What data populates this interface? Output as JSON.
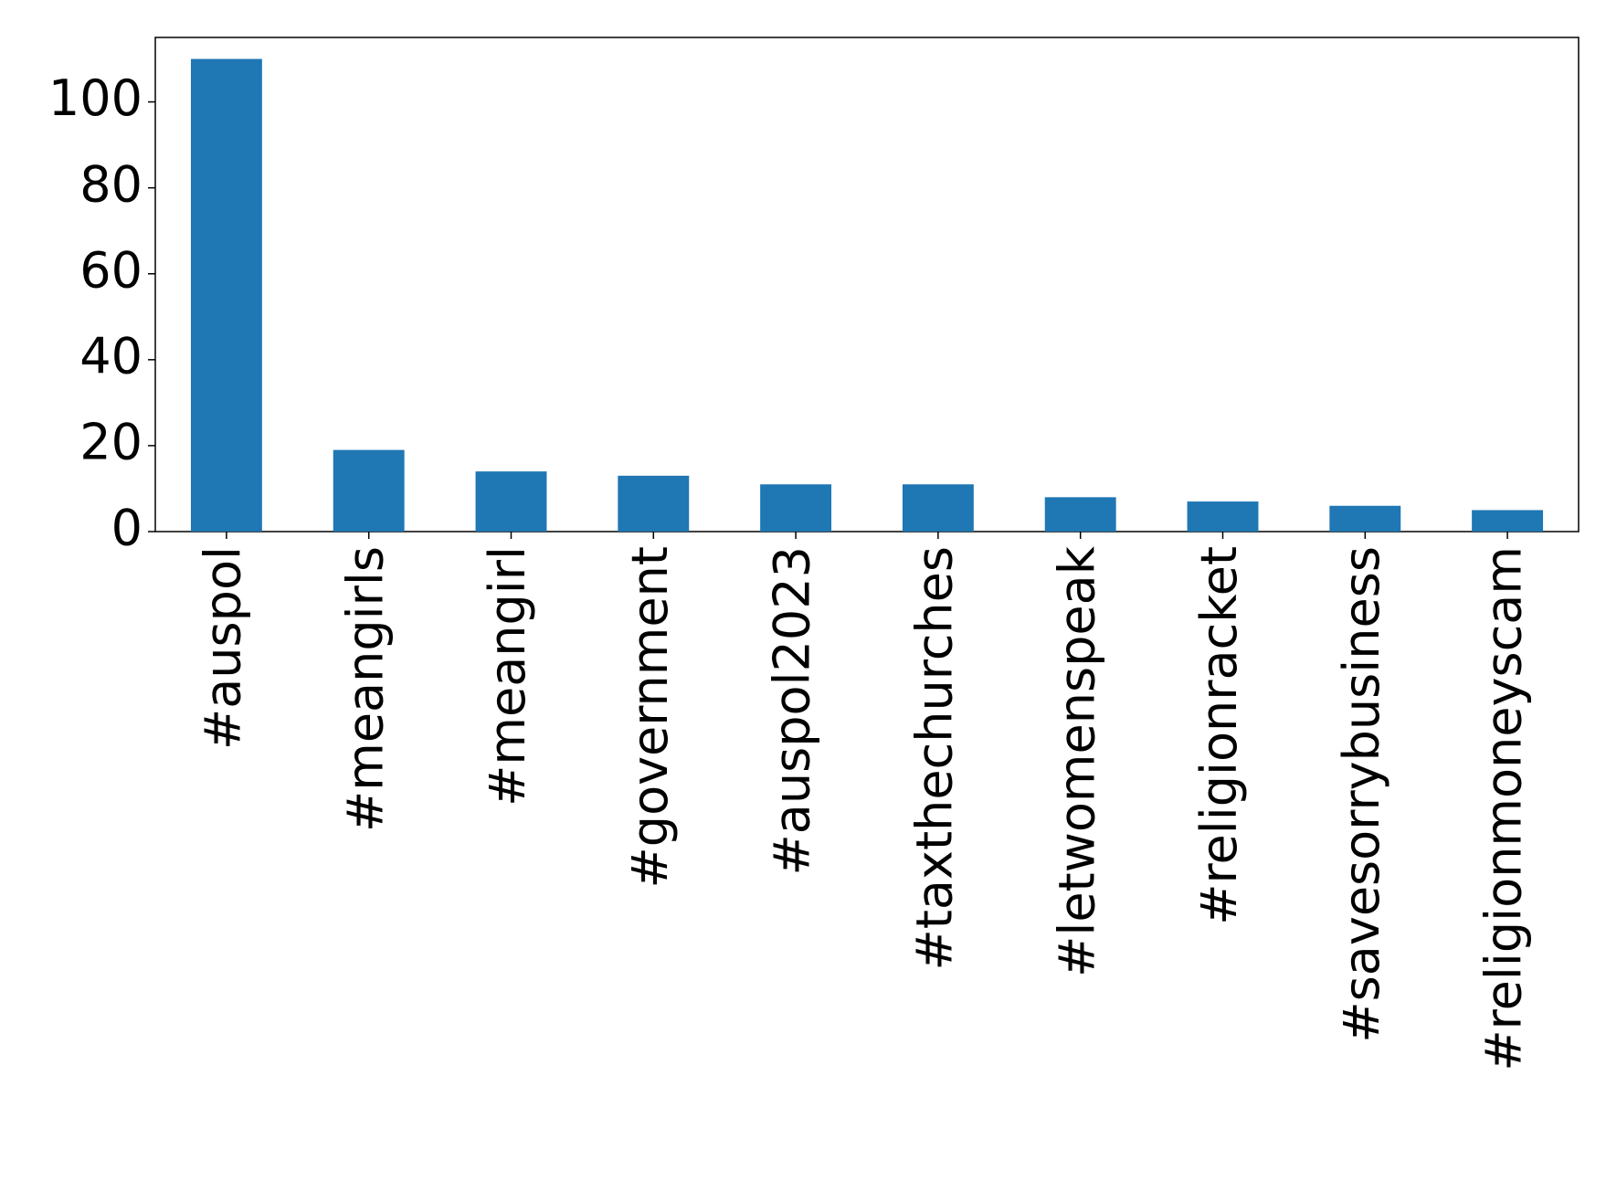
{
  "chart_data": {
    "type": "bar",
    "categories": [
      "#auspol",
      "#meangirls",
      "#meangirl",
      "#government",
      "#auspol2023",
      "#taxthechurches",
      "#letwomenspeak",
      "#religionracket",
      "#savesorrybusiness",
      "#religionmoneyscam"
    ],
    "values": [
      110,
      19,
      14,
      13,
      11,
      11,
      8,
      7,
      6,
      5
    ],
    "color": "#1f77b4",
    "ylim": [
      0,
      115
    ],
    "yticks": [
      0,
      20,
      40,
      60,
      80,
      100
    ],
    "grid": false
  }
}
